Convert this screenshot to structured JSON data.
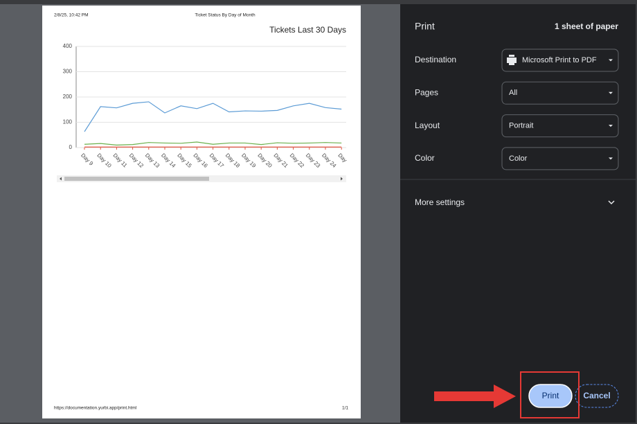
{
  "header": {
    "datetime": "2/8/25, 10:42 PM",
    "page_title": "Ticket Status By Day of Month"
  },
  "footer": {
    "url": "https://documentation.yurbi.app/print.html",
    "page_count": "1/1"
  },
  "chart_data": {
    "type": "line",
    "title": "Tickets Last 30 Days",
    "categories": [
      "Day 9",
      "Day 10",
      "Day 11",
      "Day 12",
      "Day 13",
      "Day 14",
      "Day 15",
      "Day 16",
      "Day 17",
      "Day 18",
      "Day 19",
      "Day 20",
      "Day 21",
      "Day 22",
      "Day 23",
      "Day 24",
      "Day"
    ],
    "series": [
      {
        "color": "#5b9bd5",
        "values": [
          63,
          162,
          157,
          175,
          181,
          137,
          165,
          154,
          175,
          141,
          145,
          144,
          147,
          165,
          175,
          158,
          152
        ]
      },
      {
        "color": "#6ab04c",
        "values": [
          13,
          16,
          10,
          12,
          20,
          18,
          17,
          22,
          13,
          18,
          18,
          12,
          19,
          17,
          18,
          20,
          18
        ]
      },
      {
        "color": "#e0503c",
        "values": [
          2,
          2,
          2,
          2,
          2,
          2,
          2,
          2,
          2,
          2,
          2,
          2,
          2,
          2,
          2,
          2,
          2
        ]
      }
    ],
    "ylim": [
      0,
      400
    ],
    "yticks": [
      0,
      100,
      200,
      300,
      400
    ],
    "grid": true
  },
  "print_dialog": {
    "title": "Print",
    "sheets": "1 sheet of paper",
    "settings": [
      {
        "label": "Destination",
        "value": "Microsoft Print to PDF"
      },
      {
        "label": "Pages",
        "value": "All"
      },
      {
        "label": "Layout",
        "value": "Portrait"
      },
      {
        "label": "Color",
        "value": "Color"
      }
    ],
    "more_settings": "More settings",
    "buttons": {
      "print": "Print",
      "cancel": "Cancel"
    }
  }
}
